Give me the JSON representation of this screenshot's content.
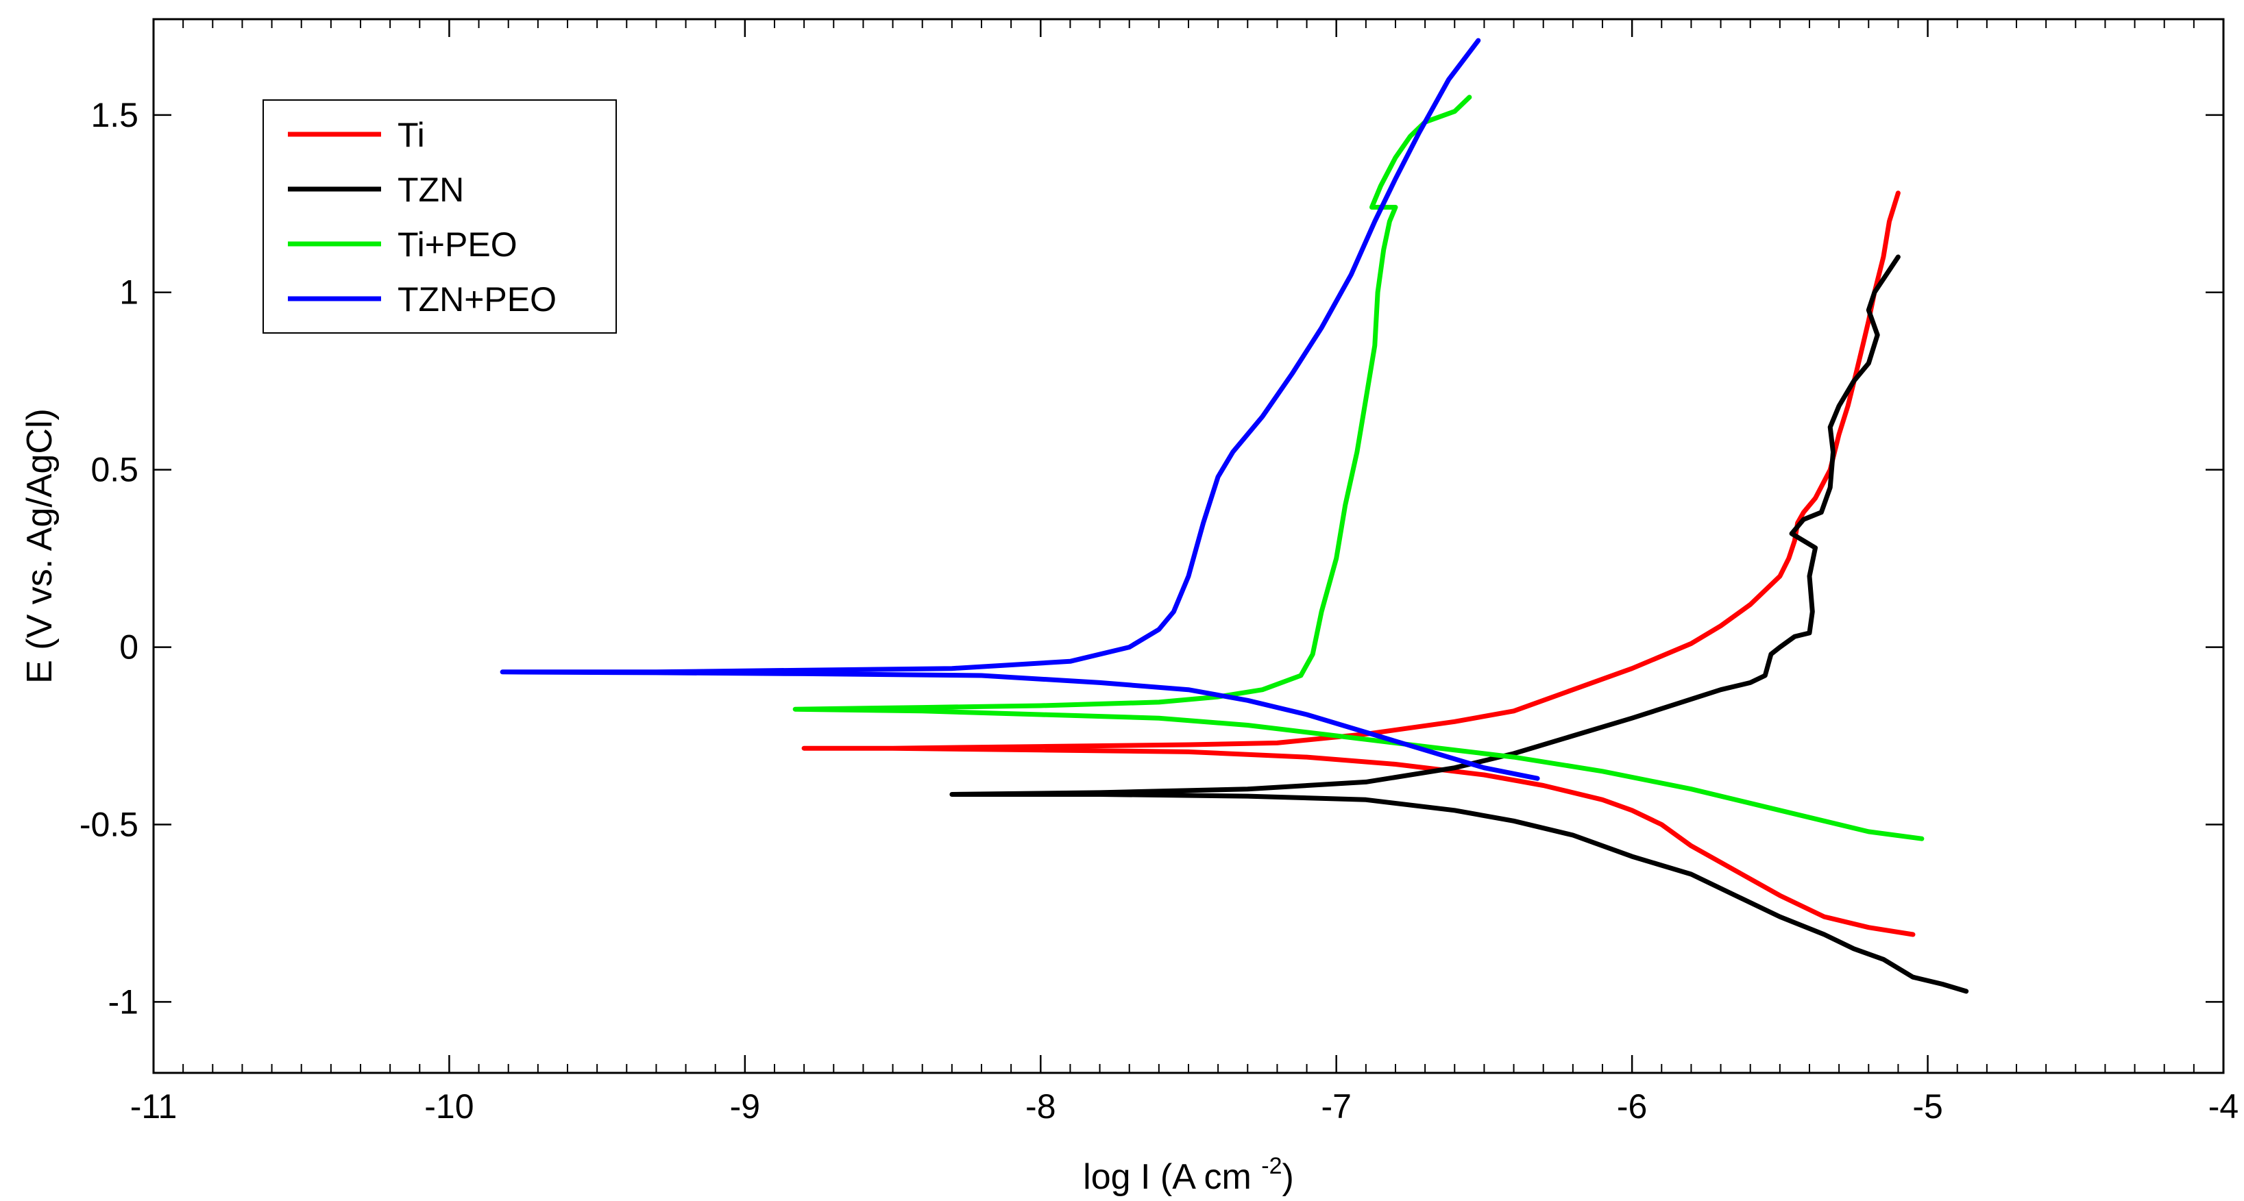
{
  "chart_data": {
    "type": "line",
    "title": "",
    "xlabel_main": "log I (A cm",
    "xlabel_sup": "-2",
    "xlabel_close": ")",
    "ylabel": "E (V vs. Ag/AgCl)",
    "xlim": [
      -11,
      -4
    ],
    "ylim": [
      -1.2,
      1.77
    ],
    "xticks": [
      -11,
      -10,
      -9,
      -8,
      -7,
      -6,
      -5,
      -4
    ],
    "xtick_labels": [
      "-11",
      "-10",
      "-9",
      "-8",
      "-7",
      "-6",
      "-5",
      "-4"
    ],
    "yticks": [
      -1,
      -0.5,
      0,
      0.5,
      1,
      1.5
    ],
    "ytick_labels": [
      "-1",
      "-0.5",
      "0",
      "0.5",
      "1",
      "1.5"
    ],
    "grid": false,
    "legend_position": "top-left",
    "series": [
      {
        "name": "Ti",
        "color": "#ff0000",
        "points": [
          [
            -5.05,
            -0.81
          ],
          [
            -5.2,
            -0.79
          ],
          [
            -5.35,
            -0.76
          ],
          [
            -5.5,
            -0.7
          ],
          [
            -5.65,
            -0.63
          ],
          [
            -5.8,
            -0.56
          ],
          [
            -5.9,
            -0.5
          ],
          [
            -6.0,
            -0.46
          ],
          [
            -6.1,
            -0.43
          ],
          [
            -6.3,
            -0.39
          ],
          [
            -6.5,
            -0.36
          ],
          [
            -6.8,
            -0.33
          ],
          [
            -7.1,
            -0.31
          ],
          [
            -7.5,
            -0.295
          ],
          [
            -8.0,
            -0.29
          ],
          [
            -8.5,
            -0.285
          ],
          [
            -8.8,
            -0.285
          ],
          [
            -8.5,
            -0.285
          ],
          [
            -8.0,
            -0.28
          ],
          [
            -7.5,
            -0.275
          ],
          [
            -7.2,
            -0.27
          ],
          [
            -6.9,
            -0.245
          ],
          [
            -6.6,
            -0.21
          ],
          [
            -6.4,
            -0.18
          ],
          [
            -6.2,
            -0.12
          ],
          [
            -6.0,
            -0.06
          ],
          [
            -5.8,
            0.01
          ],
          [
            -5.7,
            0.06
          ],
          [
            -5.6,
            0.12
          ],
          [
            -5.5,
            0.2
          ],
          [
            -5.47,
            0.25
          ],
          [
            -5.45,
            0.3
          ],
          [
            -5.44,
            0.35
          ],
          [
            -5.42,
            0.38
          ],
          [
            -5.38,
            0.42
          ],
          [
            -5.33,
            0.5
          ],
          [
            -5.3,
            0.6
          ],
          [
            -5.27,
            0.68
          ],
          [
            -5.24,
            0.78
          ],
          [
            -5.22,
            0.85
          ],
          [
            -5.2,
            0.92
          ],
          [
            -5.18,
            1.0
          ],
          [
            -5.15,
            1.1
          ],
          [
            -5.13,
            1.2
          ],
          [
            -5.1,
            1.28
          ]
        ]
      },
      {
        "name": "TZN",
        "color": "#000000",
        "points": [
          [
            -4.87,
            -0.97
          ],
          [
            -4.95,
            -0.95
          ],
          [
            -5.05,
            -0.93
          ],
          [
            -5.15,
            -0.88
          ],
          [
            -5.25,
            -0.85
          ],
          [
            -5.35,
            -0.81
          ],
          [
            -5.5,
            -0.76
          ],
          [
            -5.65,
            -0.7
          ],
          [
            -5.8,
            -0.64
          ],
          [
            -6.0,
            -0.59
          ],
          [
            -6.2,
            -0.53
          ],
          [
            -6.4,
            -0.49
          ],
          [
            -6.6,
            -0.46
          ],
          [
            -6.9,
            -0.43
          ],
          [
            -7.3,
            -0.42
          ],
          [
            -7.8,
            -0.415
          ],
          [
            -8.3,
            -0.415
          ],
          [
            -7.8,
            -0.41
          ],
          [
            -7.3,
            -0.4
          ],
          [
            -6.9,
            -0.38
          ],
          [
            -6.6,
            -0.34
          ],
          [
            -6.4,
            -0.3
          ],
          [
            -6.2,
            -0.25
          ],
          [
            -6.0,
            -0.2
          ],
          [
            -5.85,
            -0.16
          ],
          [
            -5.7,
            -0.12
          ],
          [
            -5.6,
            -0.1
          ],
          [
            -5.55,
            -0.08
          ],
          [
            -5.53,
            -0.02
          ],
          [
            -5.5,
            0.0
          ],
          [
            -5.45,
            0.03
          ],
          [
            -5.4,
            0.04
          ],
          [
            -5.39,
            0.1
          ],
          [
            -5.4,
            0.2
          ],
          [
            -5.38,
            0.28
          ],
          [
            -5.42,
            0.3
          ],
          [
            -5.46,
            0.32
          ],
          [
            -5.42,
            0.36
          ],
          [
            -5.36,
            0.38
          ],
          [
            -5.33,
            0.45
          ],
          [
            -5.32,
            0.55
          ],
          [
            -5.33,
            0.62
          ],
          [
            -5.3,
            0.68
          ],
          [
            -5.25,
            0.75
          ],
          [
            -5.2,
            0.8
          ],
          [
            -5.17,
            0.88
          ],
          [
            -5.2,
            0.95
          ],
          [
            -5.18,
            1.0
          ],
          [
            -5.14,
            1.05
          ],
          [
            -5.1,
            1.1
          ]
        ]
      },
      {
        "name": "Ti+PEO",
        "color": "#00ee00",
        "points": [
          [
            -5.02,
            -0.54
          ],
          [
            -5.2,
            -0.52
          ],
          [
            -5.5,
            -0.46
          ],
          [
            -5.8,
            -0.4
          ],
          [
            -6.1,
            -0.35
          ],
          [
            -6.4,
            -0.31
          ],
          [
            -6.7,
            -0.28
          ],
          [
            -7.0,
            -0.25
          ],
          [
            -7.3,
            -0.22
          ],
          [
            -7.6,
            -0.2
          ],
          [
            -8.0,
            -0.19
          ],
          [
            -8.4,
            -0.18
          ],
          [
            -8.83,
            -0.175
          ],
          [
            -8.4,
            -0.17
          ],
          [
            -8.0,
            -0.165
          ],
          [
            -7.6,
            -0.155
          ],
          [
            -7.4,
            -0.14
          ],
          [
            -7.25,
            -0.12
          ],
          [
            -7.12,
            -0.08
          ],
          [
            -7.08,
            -0.02
          ],
          [
            -7.05,
            0.1
          ],
          [
            -7.0,
            0.25
          ],
          [
            -6.97,
            0.4
          ],
          [
            -6.93,
            0.55
          ],
          [
            -6.9,
            0.7
          ],
          [
            -6.87,
            0.85
          ],
          [
            -6.86,
            1.0
          ],
          [
            -6.84,
            1.12
          ],
          [
            -6.82,
            1.2
          ],
          [
            -6.8,
            1.24
          ],
          [
            -6.88,
            1.24
          ],
          [
            -6.85,
            1.3
          ],
          [
            -6.8,
            1.38
          ],
          [
            -6.75,
            1.44
          ],
          [
            -6.7,
            1.48
          ],
          [
            -6.6,
            1.51
          ],
          [
            -6.55,
            1.55
          ]
        ]
      },
      {
        "name": "TZN+PEO",
        "color": "#0000ff",
        "points": [
          [
            -6.32,
            -0.37
          ],
          [
            -6.5,
            -0.34
          ],
          [
            -6.7,
            -0.29
          ],
          [
            -6.9,
            -0.24
          ],
          [
            -7.1,
            -0.19
          ],
          [
            -7.3,
            -0.15
          ],
          [
            -7.5,
            -0.12
          ],
          [
            -7.8,
            -0.1
          ],
          [
            -8.2,
            -0.08
          ],
          [
            -8.8,
            -0.075
          ],
          [
            -9.3,
            -0.072
          ],
          [
            -9.82,
            -0.07
          ],
          [
            -9.3,
            -0.07
          ],
          [
            -8.8,
            -0.065
          ],
          [
            -8.3,
            -0.06
          ],
          [
            -7.9,
            -0.04
          ],
          [
            -7.7,
            0.0
          ],
          [
            -7.6,
            0.05
          ],
          [
            -7.55,
            0.1
          ],
          [
            -7.5,
            0.2
          ],
          [
            -7.45,
            0.35
          ],
          [
            -7.4,
            0.48
          ],
          [
            -7.35,
            0.55
          ],
          [
            -7.25,
            0.65
          ],
          [
            -7.15,
            0.77
          ],
          [
            -7.05,
            0.9
          ],
          [
            -6.95,
            1.05
          ],
          [
            -6.87,
            1.2
          ],
          [
            -6.8,
            1.32
          ],
          [
            -6.72,
            1.45
          ],
          [
            -6.62,
            1.6
          ],
          [
            -6.52,
            1.71
          ]
        ]
      }
    ]
  }
}
